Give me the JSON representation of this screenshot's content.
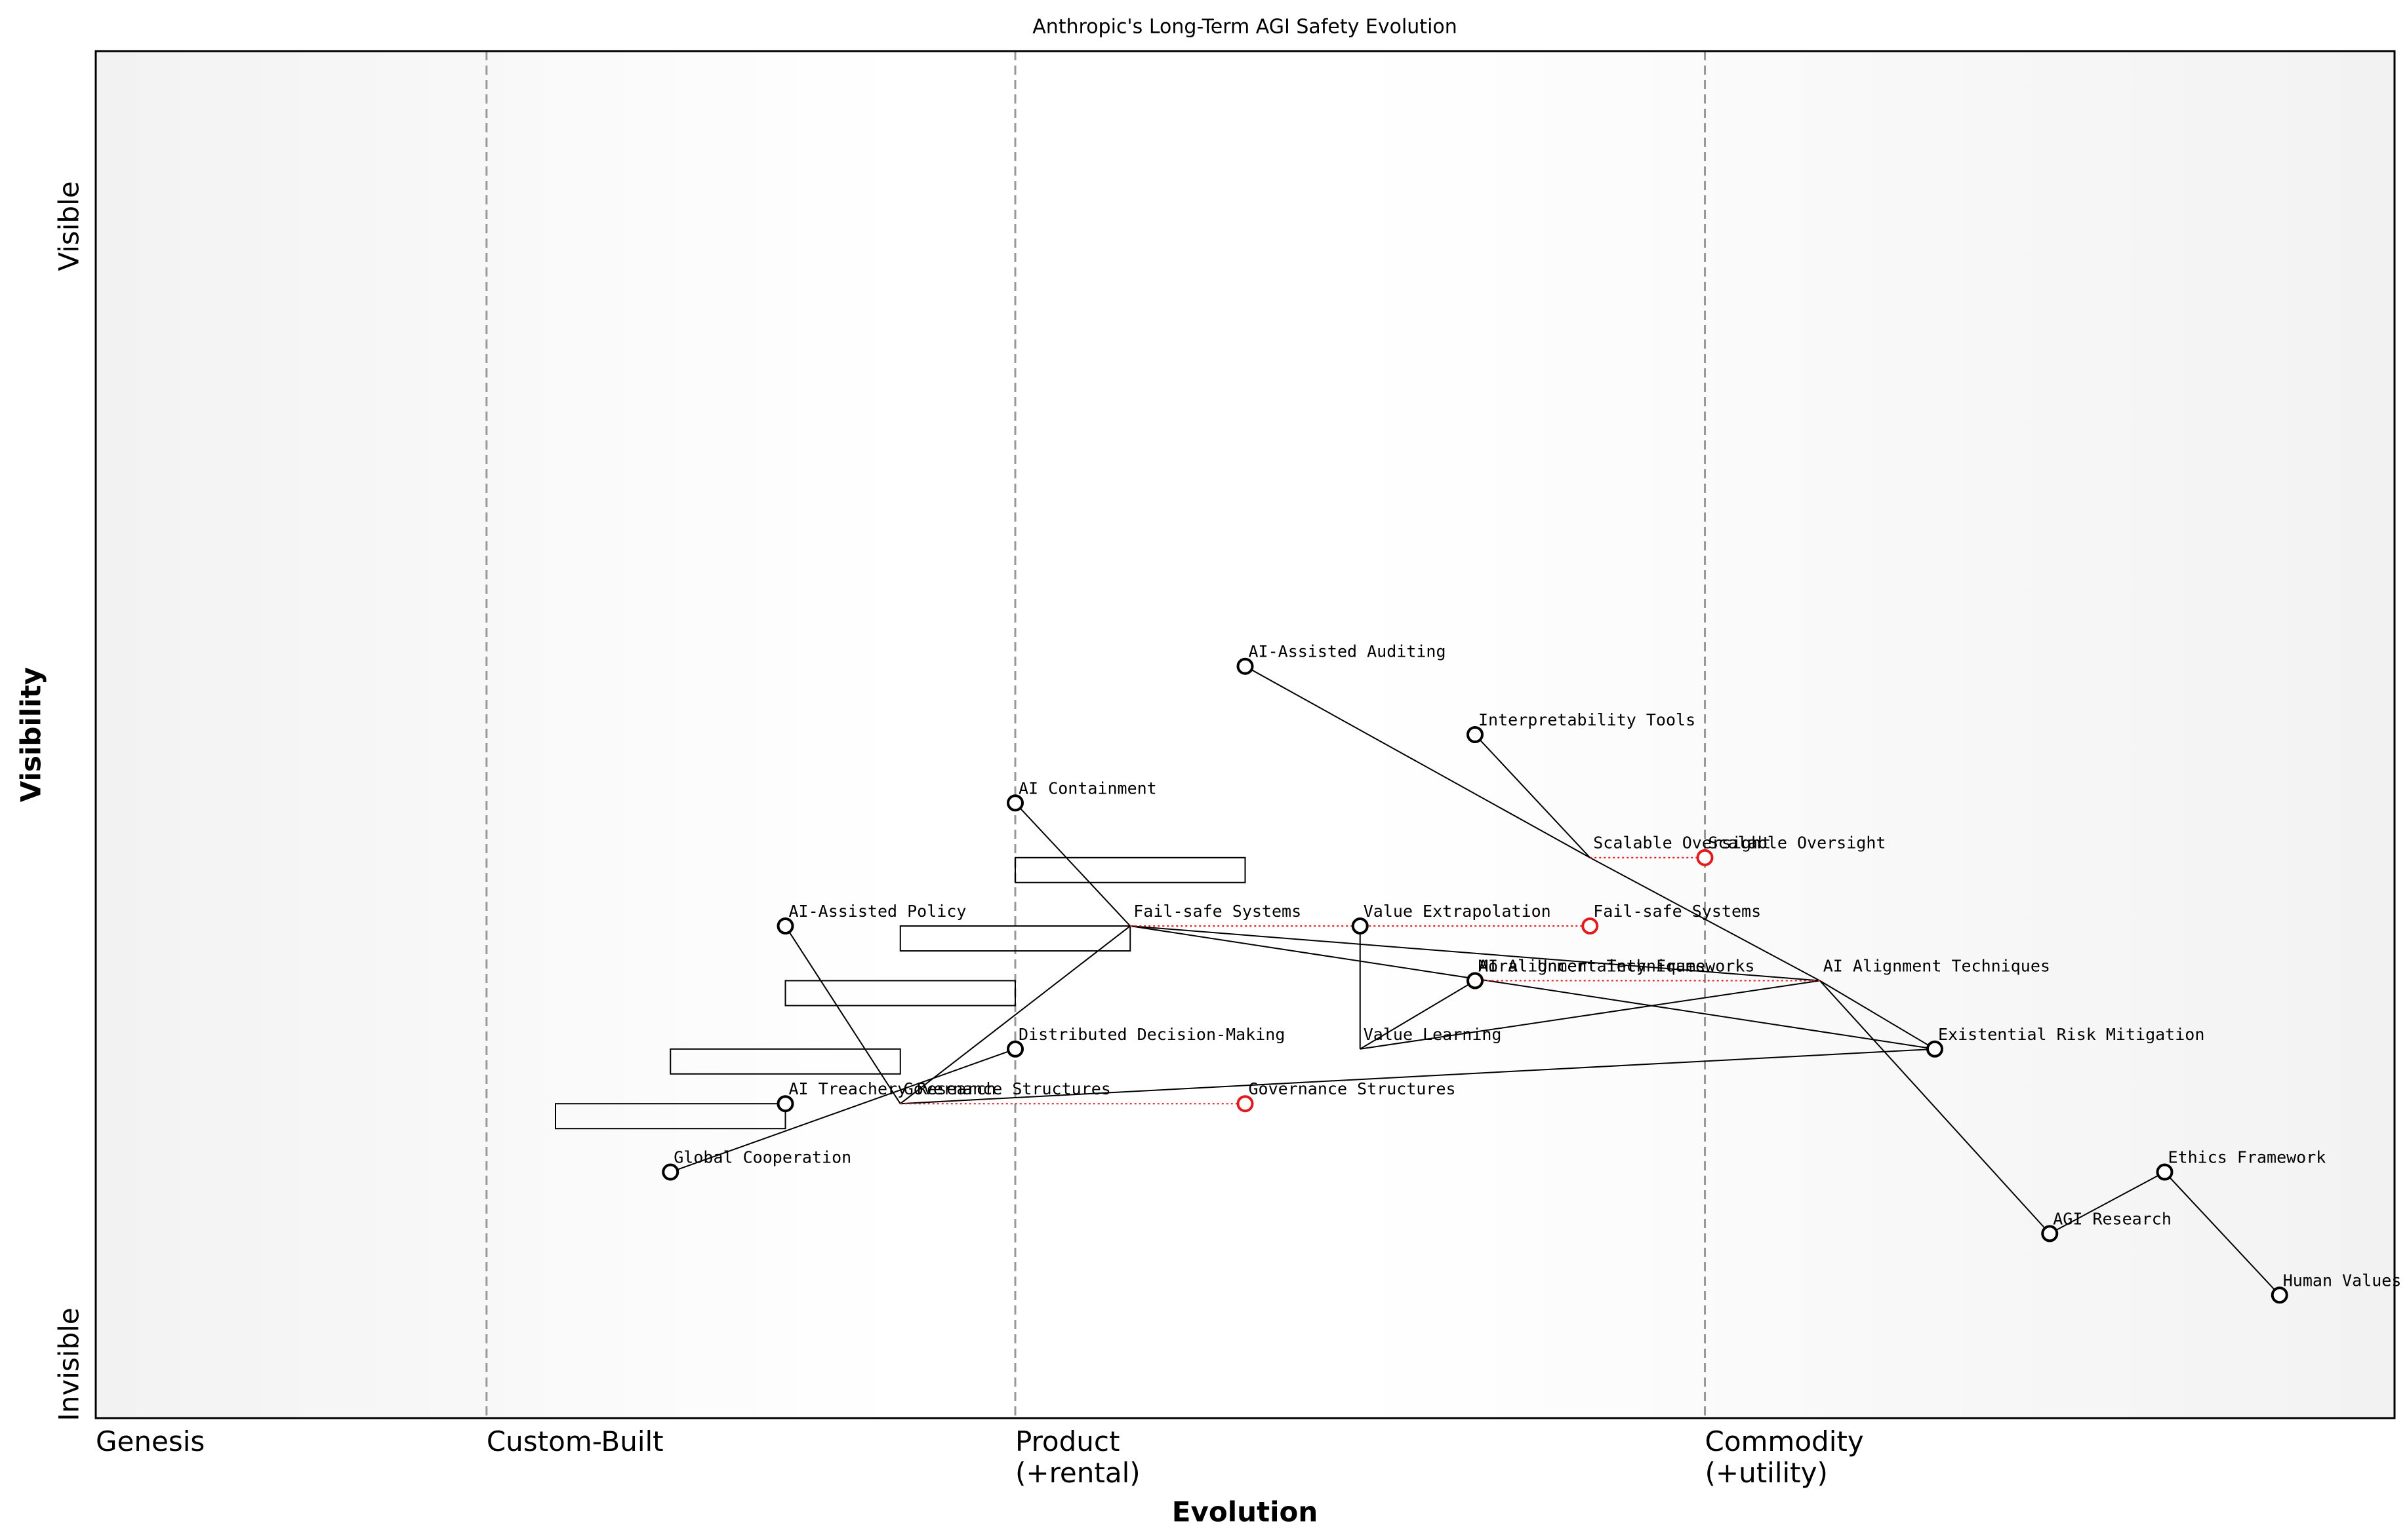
{
  "chart_data": {
    "type": "wardley",
    "title": "Anthropic's Long-Term AGI Safety Evolution",
    "x_label": "Evolution",
    "y_label": "Visibility",
    "y_top_label": "Visible",
    "y_bottom_label": "Invisible",
    "xlim": [
      0,
      1
    ],
    "ylim": [
      0,
      1
    ],
    "xticks": [
      {
        "value": 0,
        "label": "Genesis"
      },
      {
        "value": 0.17,
        "label": "Custom-Built"
      },
      {
        "value": 0.4,
        "label": "Product\n(+rental)"
      },
      {
        "value": 0.7,
        "label": "Commodity\n(+utility)"
      }
    ],
    "components": [
      {
        "name": "AI-Assisted Auditing",
        "x": 0.5,
        "y": 0.55,
        "marker": true
      },
      {
        "name": "Interpretability Tools",
        "x": 0.6,
        "y": 0.5,
        "marker": true
      },
      {
        "name": "AI Containment",
        "x": 0.4,
        "y": 0.45,
        "marker": true
      },
      {
        "name": "AI-Assisted Policy",
        "x": 0.3,
        "y": 0.36,
        "marker": true
      },
      {
        "name": "Value Extrapolation",
        "x": 0.55,
        "y": 0.36,
        "marker": true
      },
      {
        "name": "Distributed Decision-Making",
        "x": 0.4,
        "y": 0.27,
        "marker": true
      },
      {
        "name": "Existential Risk Mitigation",
        "x": 0.8,
        "y": 0.27,
        "marker": true
      },
      {
        "name": "AI Treachery Research",
        "x": 0.3,
        "y": 0.23,
        "marker": true
      },
      {
        "name": "Global Cooperation",
        "x": 0.25,
        "y": 0.18,
        "marker": true
      },
      {
        "name": "AGI Research",
        "x": 0.85,
        "y": 0.135,
        "marker": true
      },
      {
        "name": "Ethics Framework",
        "x": 0.9,
        "y": 0.18,
        "marker": true
      },
      {
        "name": "Human Values",
        "x": 0.95,
        "y": 0.09,
        "marker": true
      },
      {
        "name": "Scalable Oversight",
        "x": 0.65,
        "y": 0.41,
        "marker": false
      },
      {
        "name": "Fail-safe Systems",
        "x": 0.45,
        "y": 0.36,
        "marker": false
      },
      {
        "name": "AI Alignment Techniques",
        "x": 0.75,
        "y": 0.32,
        "marker": false
      },
      {
        "name": "Value Learning",
        "x": 0.55,
        "y": 0.27,
        "marker": false
      },
      {
        "name": "Governance Structures",
        "x": 0.35,
        "y": 0.23,
        "marker": false
      },
      {
        "name": "Moral Uncertainty Frameworks",
        "x": 0.6,
        "y": 0.32,
        "marker": true
      }
    ],
    "links": [
      [
        0,
        12
      ],
      [
        1,
        12
      ],
      [
        12,
        14
      ],
      [
        2,
        13
      ],
      [
        13,
        14
      ],
      [
        13,
        6
      ],
      [
        3,
        16
      ],
      [
        16,
        13
      ],
      [
        16,
        6
      ],
      [
        8,
        5
      ],
      [
        4,
        15
      ],
      [
        15,
        17
      ],
      [
        15,
        14
      ],
      [
        14,
        6
      ],
      [
        14,
        9
      ],
      [
        9,
        10
      ],
      [
        10,
        11
      ]
    ],
    "evolve": [
      {
        "component": 12,
        "to": 0.7
      },
      {
        "component": 13,
        "to": 0.65
      },
      {
        "component": 16,
        "to": 0.5
      },
      {
        "component": 14,
        "to": 0.6
      }
    ],
    "pipelines": [
      {
        "x_start": 0.4,
        "x_end": 0.5,
        "y": 0.41
      },
      {
        "x_start": 0.35,
        "x_end": 0.45,
        "y": 0.36
      },
      {
        "x_start": 0.3,
        "x_end": 0.4,
        "y": 0.32
      },
      {
        "x_start": 0.25,
        "x_end": 0.35,
        "y": 0.27
      },
      {
        "x_start": 0.2,
        "x_end": 0.3,
        "y": 0.23
      }
    ],
    "evolve_color": "#e31a1c",
    "marker_color": "#000000",
    "stage_line_color": "#999999"
  }
}
